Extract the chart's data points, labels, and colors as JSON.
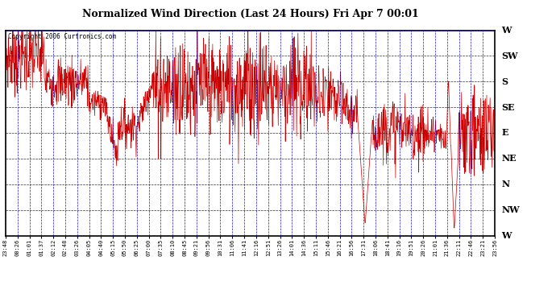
{
  "title": "Normalized Wind Direction (Last 24 Hours) Fri Apr 7 00:01",
  "copyright": "Copyright 2006 Curtronics.com",
  "background_color": "#ffffff",
  "plot_bg_color": "#ffffff",
  "line_color": "#cc0000",
  "grid_color": "#0000cc",
  "ytick_labels": [
    "W",
    "SW",
    "S",
    "SE",
    "E",
    "NE",
    "N",
    "NW",
    "W"
  ],
  "ytick_values": [
    8,
    7,
    6,
    5,
    4,
    3,
    2,
    1,
    0
  ],
  "xtick_labels": [
    "23:48",
    "00:26",
    "01:01",
    "01:37",
    "02:12",
    "02:48",
    "03:26",
    "04:05",
    "04:40",
    "05:15",
    "05:50",
    "06:25",
    "07:00",
    "07:35",
    "08:10",
    "08:45",
    "09:21",
    "09:56",
    "10:31",
    "11:06",
    "11:41",
    "12:16",
    "12:51",
    "13:26",
    "14:01",
    "14:36",
    "15:11",
    "15:46",
    "16:21",
    "16:56",
    "17:31",
    "18:06",
    "18:41",
    "19:16",
    "19:51",
    "20:26",
    "21:01",
    "21:36",
    "22:11",
    "22:46",
    "23:21",
    "23:56"
  ],
  "ylim": [
    0,
    8
  ],
  "figsize": [
    6.9,
    3.75
  ],
  "dpi": 100
}
